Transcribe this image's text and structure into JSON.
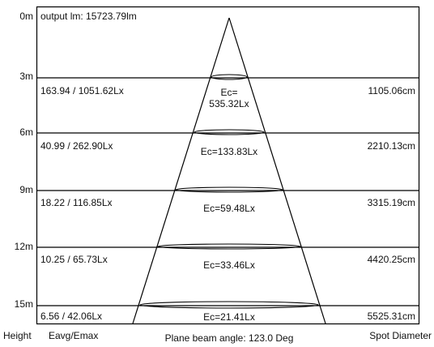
{
  "output_label": "output lm: 15723.79lm",
  "rows": [
    {
      "height": "0m"
    },
    {
      "height": "3m",
      "eavg_emax": "163.94 / 1051.62Lx",
      "ec_line1": "Ec=",
      "ec_line2": "535.32Lx",
      "spot": "1105.06cm"
    },
    {
      "height": "6m",
      "eavg_emax": "40.99 / 262.90Lx",
      "ec": "Ec=133.83Lx",
      "spot": "2210.13cm"
    },
    {
      "height": "9m",
      "eavg_emax": "18.22 / 116.85Lx",
      "ec": "Ec=59.48Lx",
      "spot": "3315.19cm"
    },
    {
      "height": "12m",
      "eavg_emax": "10.25 / 65.73Lx",
      "ec": "Ec=33.46Lx",
      "spot": "4420.25cm"
    },
    {
      "height": "15m",
      "eavg_emax": "6.56 / 42.06Lx",
      "ec": "Ec=21.41Lx",
      "spot": "5525.31cm"
    }
  ],
  "footer": {
    "height_label": "Height",
    "eavg_label": "Eavg/Emax",
    "beam_angle": "Plane beam angle: 123.0 Deg",
    "spot_label": "Spot Diameter"
  }
}
